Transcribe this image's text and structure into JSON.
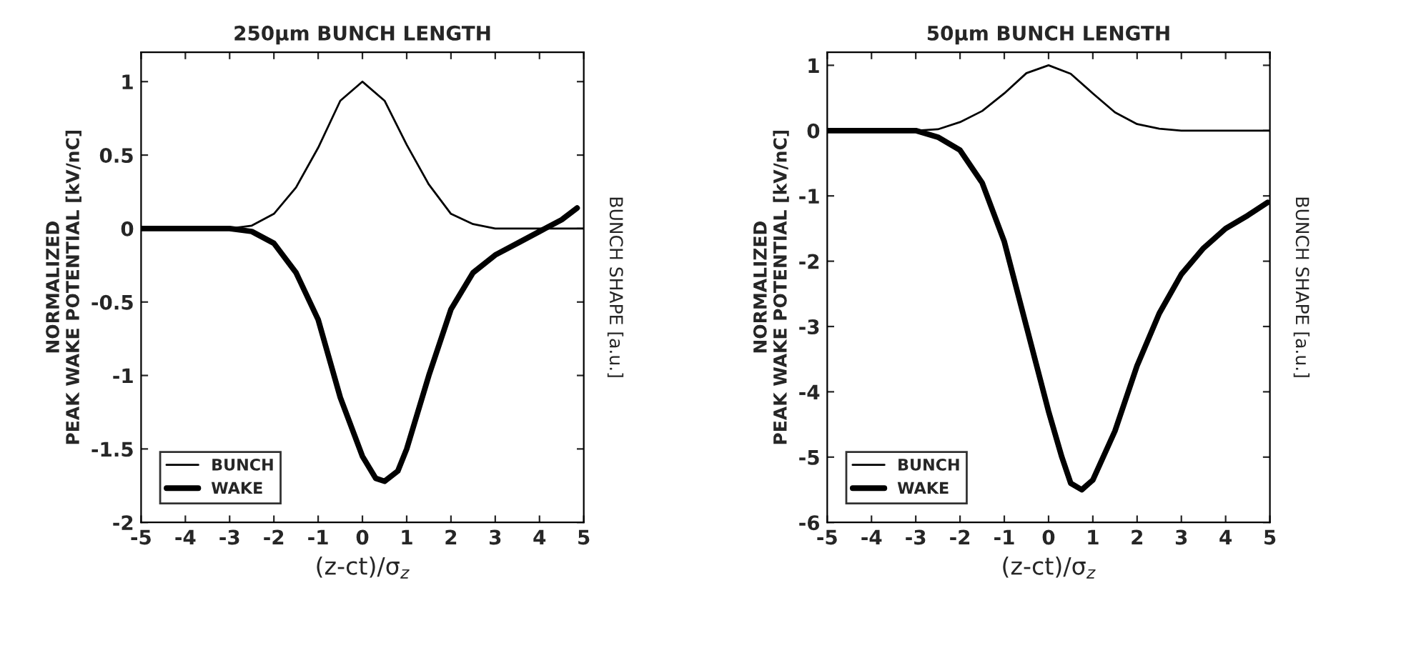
{
  "chart_data": [
    {
      "type": "line",
      "title": "250μm BUNCH LENGTH",
      "xlabel": "(z-ct)/σ$_{z}$",
      "ylabel": "NORMALIZED\nPEAK WAKE POTENTIAL [kV/nC]",
      "y2label": "BUNCH SHAPE [a.u.]",
      "xlim": [
        -5,
        5
      ],
      "xticks": [
        -5,
        -4,
        -3,
        -2,
        -1,
        0,
        1,
        2,
        3,
        4,
        5
      ],
      "ylim": [
        -2,
        1.2
      ],
      "yticks": [
        -2,
        -1.5,
        -1,
        -0.5,
        0,
        0.5,
        1
      ],
      "grid": false,
      "legend": "bottom left",
      "series": [
        {
          "name": "BUNCH",
          "color": "#000000",
          "x": [
            -5,
            -4,
            -3,
            -2.5,
            -2,
            -1.5,
            -1,
            -0.5,
            0,
            0.5,
            1,
            1.5,
            2,
            2.5,
            3,
            4,
            5
          ],
          "values": [
            0,
            0,
            0,
            0.02,
            0.1,
            0.28,
            0.55,
            0.87,
            1,
            0.87,
            0.57,
            0.3,
            0.1,
            0.03,
            0,
            0,
            0
          ]
        },
        {
          "name": "WAKE",
          "color": "#000000",
          "x": [
            -5,
            -4,
            -3,
            -2.5,
            -2,
            -1.5,
            -1,
            -0.5,
            0,
            0.3,
            0.5,
            0.8,
            1,
            1.5,
            2,
            2.5,
            3,
            3.5,
            4,
            4.5,
            4.85
          ],
          "values": [
            0,
            0,
            0,
            -0.02,
            -0.1,
            -0.3,
            -0.62,
            -1.15,
            -1.55,
            -1.7,
            -1.72,
            -1.65,
            -1.5,
            -1.0,
            -0.55,
            -0.3,
            -0.18,
            -0.1,
            -0.02,
            0.06,
            0.14
          ]
        }
      ]
    },
    {
      "type": "line",
      "title": "50μm BUNCH LENGTH",
      "xlabel": "(z-ct)/σ$_{z}$",
      "ylabel": "NORMALIZED\nPEAK WAKE POTENTIAL [kV/nC]",
      "y2label": "BUNCH SHAPE [a.u.]",
      "xlim": [
        -5,
        5
      ],
      "xticks": [
        -5,
        -4,
        -3,
        -2,
        -1,
        0,
        1,
        2,
        3,
        4,
        5
      ],
      "ylim": [
        -6,
        1.2
      ],
      "yticks": [
        -6,
        -5,
        -4,
        -3,
        -2,
        -1,
        0,
        1
      ],
      "grid": false,
      "legend": "bottom left",
      "series": [
        {
          "name": "BUNCH",
          "color": "#000000",
          "x": [
            -5,
            -4,
            -3,
            -2.5,
            -2,
            -1.5,
            -1,
            -0.5,
            0,
            0.5,
            1,
            1.5,
            2,
            2.5,
            3,
            4,
            5
          ],
          "values": [
            0,
            0,
            0,
            0.02,
            0.13,
            0.3,
            0.57,
            0.88,
            1,
            0.87,
            0.57,
            0.28,
            0.1,
            0.03,
            0,
            0,
            0
          ]
        },
        {
          "name": "WAKE",
          "color": "#000000",
          "x": [
            -5,
            -4,
            -3,
            -2.5,
            -2,
            -1.5,
            -1,
            -0.5,
            0,
            0.3,
            0.5,
            0.75,
            1,
            1.5,
            2,
            2.5,
            3,
            3.5,
            4,
            4.5,
            4.95
          ],
          "values": [
            0,
            0,
            0,
            -0.1,
            -0.3,
            -0.8,
            -1.7,
            -3.0,
            -4.3,
            -5.0,
            -5.4,
            -5.5,
            -5.35,
            -4.6,
            -3.6,
            -2.8,
            -2.2,
            -1.8,
            -1.5,
            -1.3,
            -1.1
          ]
        }
      ]
    }
  ]
}
